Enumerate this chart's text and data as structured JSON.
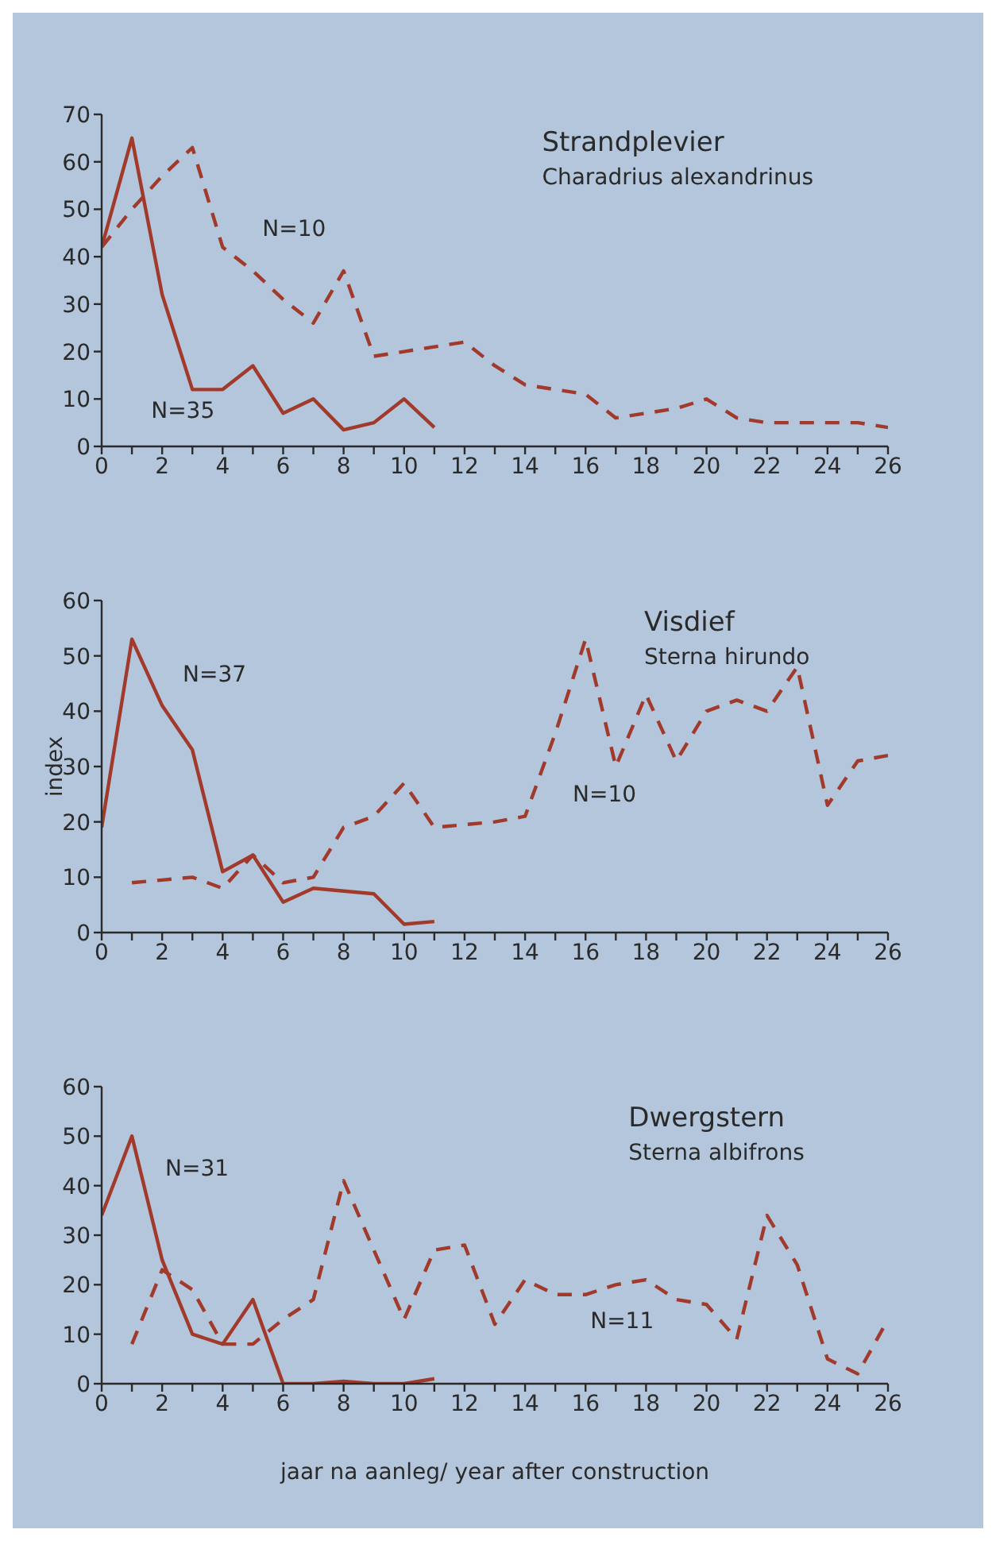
{
  "chart_data": [
    {
      "type": "line",
      "title": "Strandplevier",
      "subtitle": "Charadrius alexandrinus",
      "xlim": [
        0,
        26
      ],
      "xticks": [
        0,
        {
          "value": 1,
          "label": null
        },
        2,
        {
          "value": 3,
          "label": null
        },
        4,
        {
          "value": 5,
          "label": null
        },
        6,
        {
          "value": 7,
          "label": null
        },
        8,
        {
          "value": 9,
          "label": null
        },
        10,
        {
          "value": 11,
          "label": null
        },
        12,
        {
          "value": 13,
          "label": null
        },
        14,
        {
          "value": 15,
          "label": null
        },
        16,
        {
          "value": 17,
          "label": null
        },
        18,
        {
          "value": 19,
          "label": null
        },
        20,
        {
          "value": 21,
          "label": null
        },
        22,
        {
          "value": 23,
          "label": null
        },
        24,
        {
          "value": 25,
          "label": null
        },
        26
      ],
      "ylim": [
        0,
        70
      ],
      "yticks": [
        0,
        10,
        20,
        30,
        40,
        50,
        60,
        70
      ],
      "marker": "none",
      "series": [
        {
          "name": "N=35",
          "color": "#a23a2c",
          "line_style": "solid",
          "x": [
            0,
            1,
            2,
            3,
            4,
            5,
            6,
            7,
            8,
            9,
            10,
            11
          ],
          "values": [
            42,
            65,
            32,
            12,
            12,
            17,
            7,
            10,
            3.5,
            5,
            10,
            4
          ]
        },
        {
          "name": "N=10",
          "color": "#a23a2c",
          "line_style": "dashed",
          "x": [
            0,
            1,
            2,
            3,
            4,
            5,
            6,
            7,
            8,
            9,
            10,
            11,
            12,
            13,
            14,
            15,
            16,
            17,
            18,
            19,
            20,
            21,
            22,
            23,
            24,
            25,
            26
          ],
          "values": [
            42,
            50,
            57,
            63,
            42,
            37,
            31,
            26,
            37,
            19,
            20,
            21,
            22,
            17,
            13,
            12,
            11,
            6,
            7,
            8,
            10,
            6,
            5,
            5,
            5,
            5,
            4
          ]
        }
      ]
    },
    {
      "type": "line",
      "title": "Visdief",
      "subtitle": "Sterna hirundo",
      "ylabel": "index",
      "xlim": [
        0,
        26
      ],
      "xticks": [
        0,
        {
          "value": 1,
          "label": null
        },
        2,
        {
          "value": 3,
          "label": null
        },
        4,
        {
          "value": 5,
          "label": null
        },
        6,
        {
          "value": 7,
          "label": null
        },
        8,
        {
          "value": 9,
          "label": null
        },
        10,
        {
          "value": 11,
          "label": null
        },
        12,
        {
          "value": 13,
          "label": null
        },
        14,
        {
          "value": 15,
          "label": null
        },
        16,
        {
          "value": 17,
          "label": null
        },
        18,
        {
          "value": 19,
          "label": null
        },
        20,
        {
          "value": 21,
          "label": null
        },
        22,
        {
          "value": 23,
          "label": null
        },
        24,
        {
          "value": 25,
          "label": null
        },
        26
      ],
      "ylim": [
        0,
        60
      ],
      "yticks": [
        0,
        10,
        20,
        30,
        40,
        50,
        60
      ],
      "marker": "none",
      "series": [
        {
          "name": "N=37",
          "color": "#a23a2c",
          "line_style": "solid",
          "x": [
            0,
            1,
            2,
            3,
            4,
            5,
            6,
            7,
            8,
            9,
            10,
            11
          ],
          "values": [
            19,
            53,
            41,
            33,
            11,
            14,
            5.5,
            8,
            7.5,
            7,
            1.5,
            2
          ]
        },
        {
          "name": "N=10",
          "color": "#a23a2c",
          "line_style": "dashed",
          "x": [
            1,
            2,
            3,
            4,
            5,
            6,
            7,
            8,
            9,
            10,
            11,
            12,
            13,
            14,
            15,
            16,
            17,
            18,
            19,
            20,
            21,
            22,
            23,
            24,
            25,
            26
          ],
          "values": [
            9,
            9.5,
            10,
            8,
            14,
            9,
            10,
            19,
            21,
            27,
            19,
            19.5,
            20,
            21,
            36,
            53,
            30,
            43,
            31,
            40,
            42,
            40,
            48,
            23,
            31,
            32
          ]
        }
      ]
    },
    {
      "type": "line",
      "title": "Dwergstern",
      "subtitle": "Sterna albifrons",
      "xlabel": "jaar na aanleg/ year after construction",
      "xlim": [
        0,
        26
      ],
      "xticks": [
        0,
        {
          "value": 1,
          "label": null
        },
        2,
        {
          "value": 3,
          "label": null
        },
        4,
        {
          "value": 5,
          "label": null
        },
        6,
        {
          "value": 7,
          "label": null
        },
        8,
        {
          "value": 9,
          "label": null
        },
        10,
        {
          "value": 11,
          "label": null
        },
        12,
        {
          "value": 13,
          "label": null
        },
        14,
        {
          "value": 15,
          "label": null
        },
        16,
        {
          "value": 17,
          "label": null
        },
        18,
        {
          "value": 19,
          "label": null
        },
        20,
        {
          "value": 21,
          "label": null
        },
        22,
        {
          "value": 23,
          "label": null
        },
        24,
        {
          "value": 25,
          "label": null
        },
        26
      ],
      "ylim": [
        0,
        60
      ],
      "yticks": [
        0,
        10,
        20,
        30,
        40,
        50,
        60
      ],
      "marker": "none",
      "series": [
        {
          "name": "N=31",
          "color": "#a23a2c",
          "line_style": "solid",
          "x": [
            0,
            1,
            2,
            3,
            4,
            5,
            6,
            7,
            8,
            9,
            10,
            11
          ],
          "values": [
            34,
            50,
            25,
            10,
            8,
            17,
            0,
            0,
            0.5,
            0,
            0,
            1
          ]
        },
        {
          "name": "N=11",
          "color": "#a23a2c",
          "line_style": "dashed",
          "x": [
            1,
            2,
            3,
            4,
            5,
            6,
            7,
            8,
            9,
            10,
            11,
            12,
            13,
            14,
            15,
            16,
            17,
            18,
            19,
            20,
            21,
            22,
            23,
            24,
            25,
            26
          ],
          "values": [
            8,
            23,
            19,
            8,
            8,
            13,
            17,
            41,
            27,
            13,
            27,
            28,
            12,
            21,
            18,
            18,
            20,
            21,
            17,
            16,
            9,
            34,
            24,
            5,
            2,
            13
          ]
        }
      ]
    }
  ]
}
